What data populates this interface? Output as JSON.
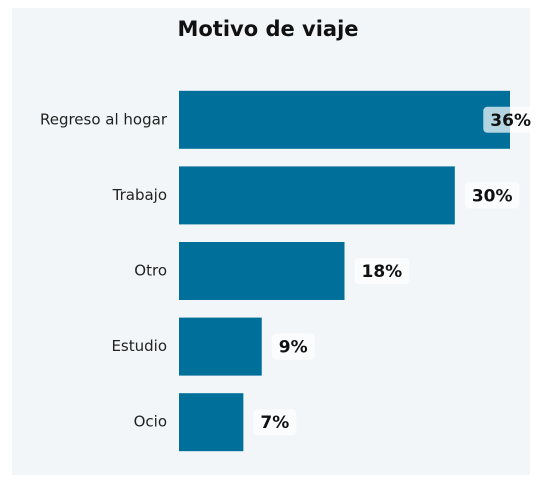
{
  "chart_data": {
    "type": "bar",
    "orientation": "horizontal",
    "title": "Motivo de viaje",
    "categories": [
      "Regreso al hogar",
      "Trabajo",
      "Otro",
      "Estudio",
      "Ocio"
    ],
    "values": [
      36,
      30,
      18,
      9,
      7
    ],
    "value_labels": [
      "36%",
      "30%",
      "18%",
      "9%",
      "7%"
    ],
    "color": "#00709a"
  }
}
